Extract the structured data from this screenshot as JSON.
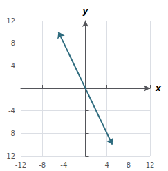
{
  "chart_data": {
    "type": "line",
    "x": [
      -5,
      5
    ],
    "values": [
      10,
      -10
    ],
    "color": "#2e6b7e",
    "xlabel": "x",
    "ylabel": "y",
    "xlim": [
      -12,
      12
    ],
    "ylim": [
      -12,
      12
    ],
    "xticks": [
      -12,
      -8,
      -4,
      {
        "value": 0,
        "label": null
      },
      4,
      8,
      12
    ],
    "yticks": [
      -12,
      -8,
      -4,
      {
        "value": 0,
        "label": null
      },
      4,
      8,
      12
    ],
    "grid": true
  }
}
